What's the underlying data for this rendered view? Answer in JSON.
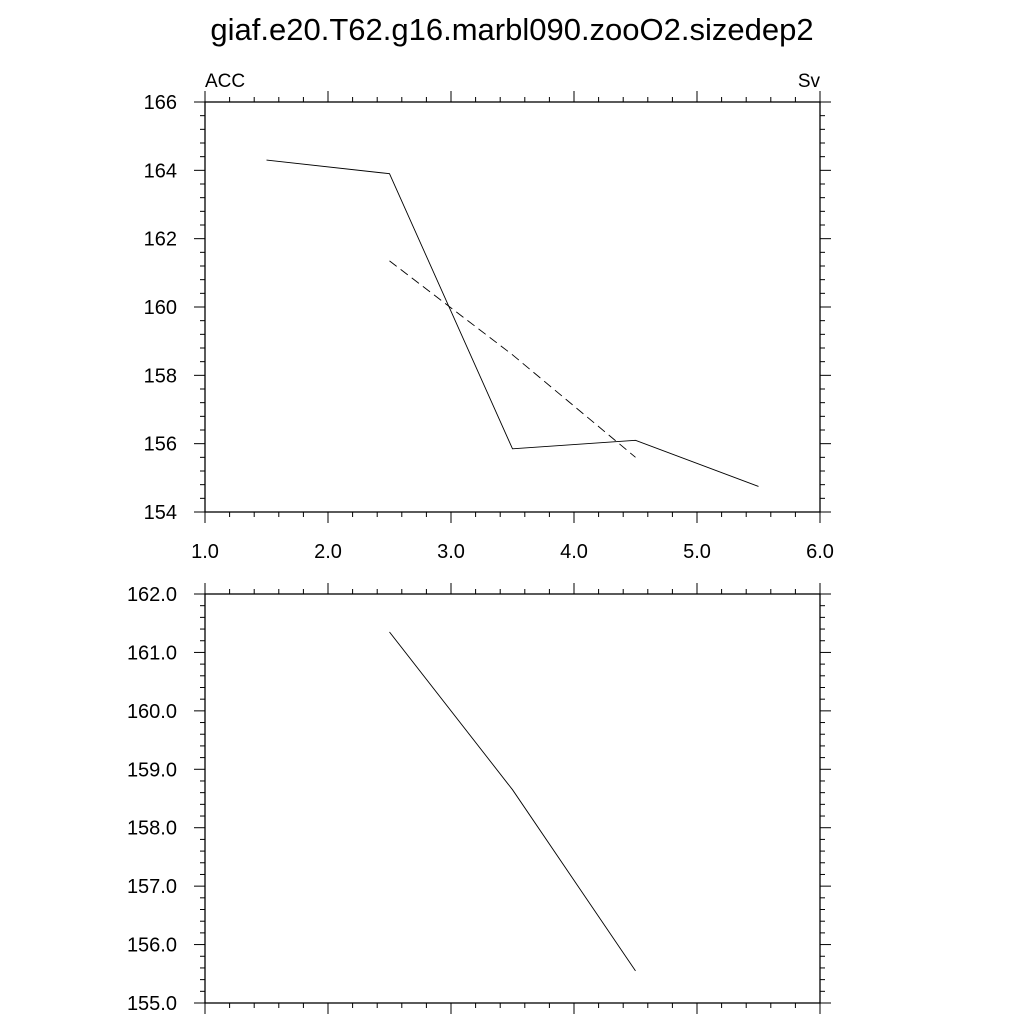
{
  "title": "giaf.e20.T62.g16.marbl090.zooO2.sizedep2",
  "chart_data": [
    {
      "type": "line",
      "left_label": "ACC",
      "right_label": "Sv",
      "xlim": [
        1.0,
        6.0
      ],
      "ylim": [
        154,
        166
      ],
      "x_ticks": [
        "1.0",
        "2.0",
        "3.0",
        "4.0",
        "5.0",
        "6.0"
      ],
      "y_ticks": [
        "154",
        "156",
        "158",
        "160",
        "162",
        "164",
        "166"
      ],
      "series": [
        {
          "style": "solid",
          "x": [
            1.5,
            2.5,
            3.5,
            4.5,
            5.5
          ],
          "y": [
            164.3,
            163.9,
            155.85,
            156.1,
            154.75
          ]
        },
        {
          "style": "dashed",
          "x": [
            2.5,
            3.5,
            4.5
          ],
          "y": [
            161.35,
            158.6,
            155.6
          ]
        }
      ]
    },
    {
      "type": "line",
      "xlim": [
        1.0,
        6.0
      ],
      "ylim": [
        155.0,
        162.0
      ],
      "y_ticks": [
        "155.0",
        "156.0",
        "157.0",
        "158.0",
        "159.0",
        "160.0",
        "161.0",
        "162.0"
      ],
      "series": [
        {
          "style": "solid",
          "x": [
            2.5,
            3.5,
            4.5
          ],
          "y": [
            161.35,
            158.65,
            155.55
          ]
        }
      ]
    }
  ]
}
